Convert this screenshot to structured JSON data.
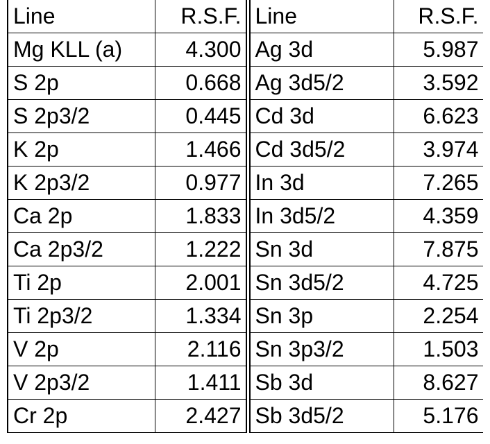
{
  "headers": {
    "line_left": "Line",
    "rsf_left": "R.S.F.",
    "line_right": "Line",
    "rsf_right": "R.S.F."
  },
  "rows": [
    {
      "line_left": "Mg KLL (a)",
      "rsf_left": "4.300",
      "line_right": "Ag 3d",
      "rsf_right": "5.987"
    },
    {
      "line_left": "S 2p",
      "rsf_left": "0.668",
      "line_right": "Ag 3d5/2",
      "rsf_right": "3.592"
    },
    {
      "line_left": "S 2p3/2",
      "rsf_left": "0.445",
      "line_right": "Cd 3d",
      "rsf_right": "6.623"
    },
    {
      "line_left": "K 2p",
      "rsf_left": "1.466",
      "line_right": "Cd 3d5/2",
      "rsf_right": "3.974"
    },
    {
      "line_left": "K 2p3/2",
      "rsf_left": "0.977",
      "line_right": "In 3d",
      "rsf_right": "7.265"
    },
    {
      "line_left": "Ca 2p",
      "rsf_left": "1.833",
      "line_right": "In 3d5/2",
      "rsf_right": "4.359"
    },
    {
      "line_left": "Ca 2p3/2",
      "rsf_left": "1.222",
      "line_right": "Sn 3d",
      "rsf_right": "7.875"
    },
    {
      "line_left": "Ti 2p",
      "rsf_left": "2.001",
      "line_right": "Sn 3d5/2",
      "rsf_right": "4.725"
    },
    {
      "line_left": "Ti 2p3/2",
      "rsf_left": "1.334",
      "line_right": "Sn 3p",
      "rsf_right": "2.254"
    },
    {
      "line_left": "V 2p",
      "rsf_left": "2.116",
      "line_right": "Sn 3p3/2",
      "rsf_right": "1.503"
    },
    {
      "line_left": "V 2p3/2",
      "rsf_left": "1.411",
      "line_right": "Sb 3d",
      "rsf_right": "8.627"
    },
    {
      "line_left": "Cr 2p",
      "rsf_left": "2.427",
      "line_right": "Sb 3d5/2",
      "rsf_right": "5.176"
    }
  ]
}
